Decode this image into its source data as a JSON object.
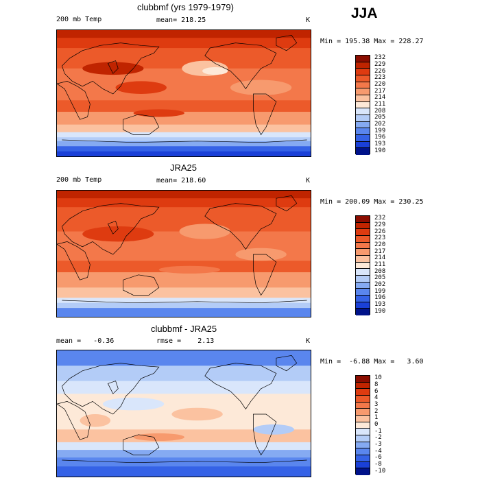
{
  "season": "JJA",
  "chart_data": [
    {
      "type": "heatmap",
      "title": "clubbmf (yrs 1979-1979)",
      "variable": "200 mb Temp",
      "mean_label": "mean= 218.25",
      "units": "K",
      "minmax": "Min = 195.38 Max = 228.27",
      "min": 195.38,
      "max": 228.27,
      "mean": 218.25,
      "levels": [
        "232",
        "229",
        "226",
        "223",
        "220",
        "217",
        "214",
        "211",
        "208",
        "205",
        "202",
        "199",
        "196",
        "193",
        "190"
      ],
      "colors": [
        "#8b0d00",
        "#c02400",
        "#de3b10",
        "#ec5a2a",
        "#f3784a",
        "#f79a6e",
        "#fbc2a0",
        "#fde9d8",
        "#d9e6fb",
        "#b3ccf7",
        "#85aaf2",
        "#5a86ee",
        "#3562e6",
        "#1a40d8",
        "#00128a"
      ]
    },
    {
      "type": "heatmap",
      "title": "JRA25",
      "variable": "200 mb Temp",
      "mean_label": "mean= 218.60",
      "units": "K",
      "minmax": "Min = 200.09 Max = 230.25",
      "min": 200.09,
      "max": 230.25,
      "mean": 218.6,
      "levels": [
        "232",
        "229",
        "226",
        "223",
        "220",
        "217",
        "214",
        "211",
        "208",
        "205",
        "202",
        "199",
        "196",
        "193",
        "190"
      ],
      "colors": [
        "#8b0d00",
        "#c02400",
        "#de3b10",
        "#ec5a2a",
        "#f3784a",
        "#f79a6e",
        "#fbc2a0",
        "#fde9d8",
        "#d9e6fb",
        "#b3ccf7",
        "#85aaf2",
        "#5a86ee",
        "#3562e6",
        "#1a40d8",
        "#00128a"
      ]
    },
    {
      "type": "heatmap",
      "title": "clubbmf - JRA25",
      "mean_label": "mean =   -0.36",
      "rmse_label": "rmse =    2.13",
      "units": "K",
      "minmax": "Min =  -6.88 Max =   3.60",
      "min": -6.88,
      "max": 3.6,
      "mean": -0.36,
      "rmse": 2.13,
      "levels": [
        "10",
        "8",
        "6",
        "4",
        "3",
        "2",
        "1",
        "0",
        "-1",
        "-2",
        "-3",
        "-4",
        "-6",
        "-8",
        "-10"
      ],
      "colors": [
        "#8b0d00",
        "#c02400",
        "#de3b10",
        "#ec5a2a",
        "#f3784a",
        "#f79a6e",
        "#fbc2a0",
        "#fde9d8",
        "#d9e6fb",
        "#b3ccf7",
        "#85aaf2",
        "#5a86ee",
        "#3562e6",
        "#1a40d8",
        "#00128a"
      ]
    }
  ]
}
